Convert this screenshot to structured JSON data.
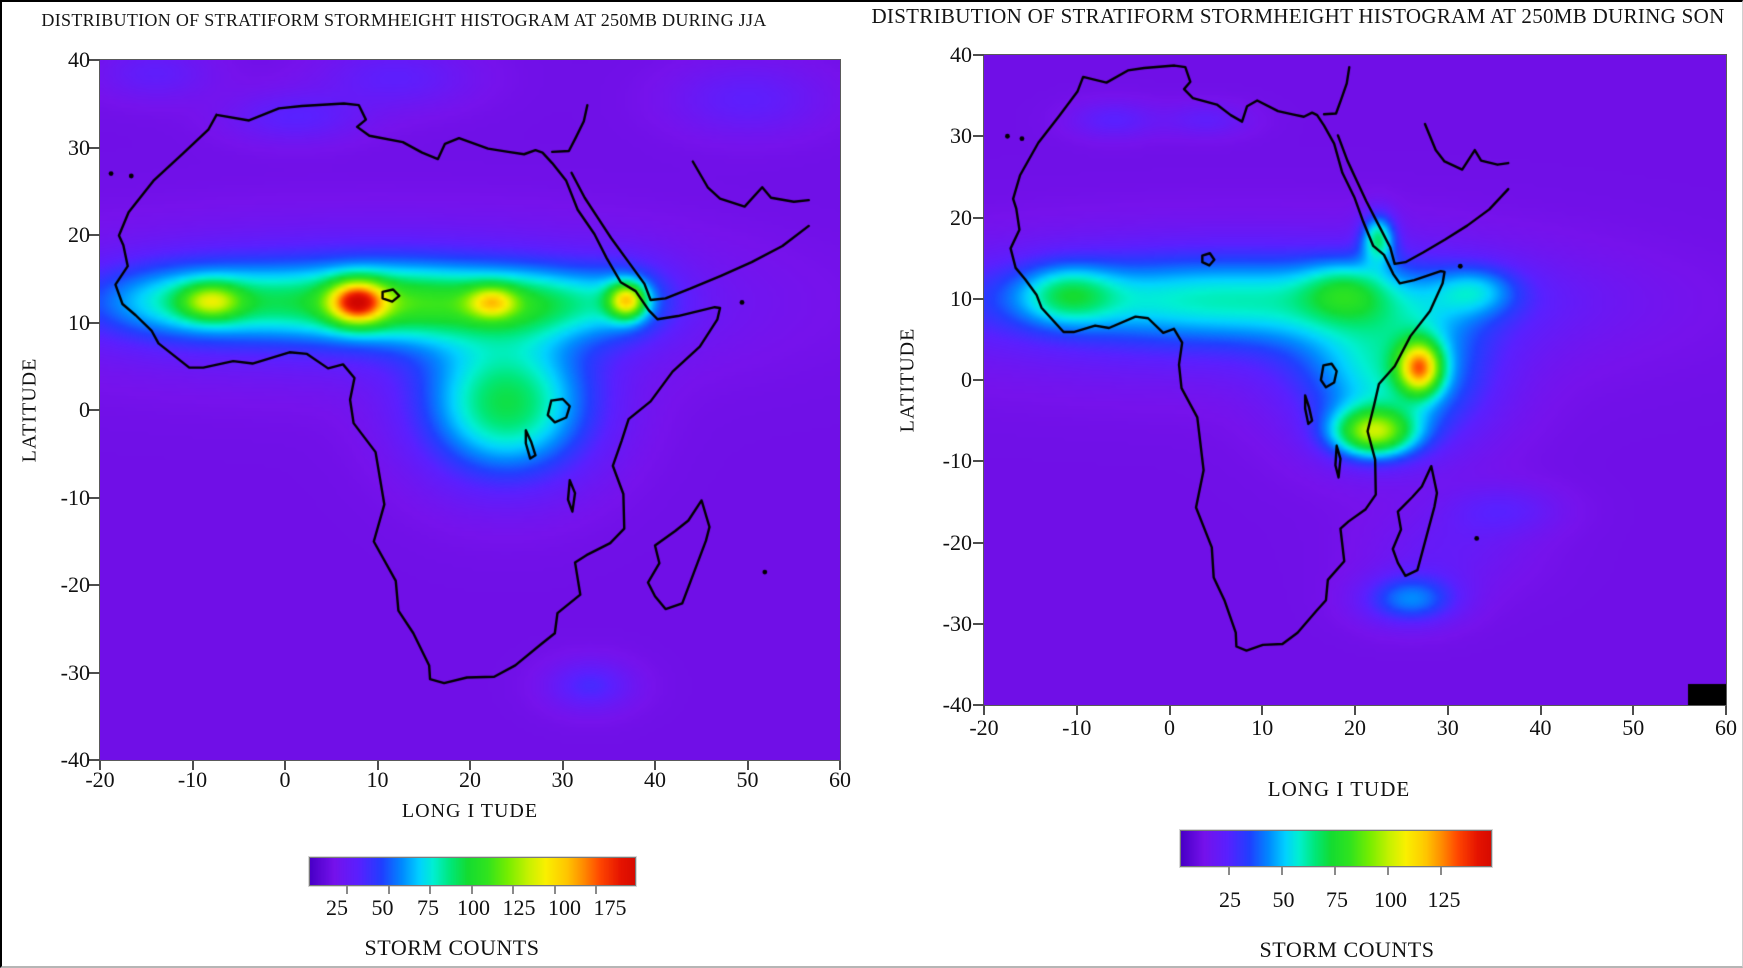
{
  "page": {
    "background": "#ffffff",
    "frame_color": "#000000"
  },
  "chart_data": [
    {
      "type": "heatmap",
      "title": "DISTRIBUTION OF STRATIFORM STORMHEIGHT HISTOGRAM AT 250MB DURING JJA",
      "xlabel": "LONG I TUDE",
      "ylabel": "LATITUDE",
      "xlim": [
        -20,
        60
      ],
      "ylim": [
        -40,
        40
      ],
      "x_ticks": [
        -20,
        -10,
        0,
        10,
        20,
        30,
        40,
        50,
        60
      ],
      "y_ticks": [
        40,
        30,
        20,
        10,
        0,
        -10,
        -20,
        -30,
        -40
      ],
      "grid": false,
      "colorbar": {
        "tick_labels": [
          "25",
          "50",
          "75",
          "100",
          "125",
          "100",
          "175"
        ],
        "label": "STORM COUNTS",
        "position": "bottom"
      },
      "missing_cell": false,
      "field_units": "storm counts",
      "field": {
        "base": 12,
        "blobs_format": "[lon, lat, sigma_lon_deg, sigma_lat_deg, amplitude_counts]",
        "blobs": [
          [
            10,
            12.3,
            30,
            7.5,
            28
          ],
          [
            -9,
            12.4,
            12,
            4.2,
            52
          ],
          [
            11,
            12.3,
            11,
            4.2,
            58
          ],
          [
            27,
            12.3,
            10,
            4.0,
            48
          ],
          [
            -8,
            12.4,
            3.2,
            2.0,
            50
          ],
          [
            7.8,
            12.3,
            3.0,
            2.4,
            95
          ],
          [
            22.4,
            12.3,
            2.6,
            1.8,
            50
          ],
          [
            37,
            12.5,
            2.0,
            2.0,
            85
          ],
          [
            37,
            12.5,
            5.0,
            4.5,
            22
          ],
          [
            24,
            0.5,
            9,
            8,
            75
          ],
          [
            33,
            -31.5,
            4.5,
            2.8,
            20
          ],
          [
            1,
            33.5,
            7,
            2.8,
            16
          ],
          [
            12,
            38,
            8,
            3.5,
            14
          ],
          [
            50,
            35.5,
            8,
            4,
            14
          ],
          [
            -14,
            38.5,
            6,
            3,
            13
          ]
        ],
        "peak_summary": "ITCZ band of ~90-110 counts along lat 12N from lon -18 to 40; maximum ~185 (red) at lon 8E lat 12N; secondary orange maxima at lon -8, 22 and 37; green lobe over Congo basin"
      }
    },
    {
      "type": "heatmap",
      "title": "DISTRIBUTION OF STRATIFORM STORMHEIGHT HISTOGRAM AT 250MB DURING SON",
      "xlabel": "LONG I TUDE",
      "ylabel": "LATITUDE",
      "xlim": [
        -20,
        60
      ],
      "ylim": [
        -40,
        40
      ],
      "x_ticks": [
        -20,
        -10,
        0,
        10,
        20,
        30,
        40,
        50,
        60
      ],
      "y_ticks": [
        40,
        30,
        20,
        10,
        0,
        -10,
        -20,
        -30,
        -40
      ],
      "grid": false,
      "colorbar": {
        "tick_labels": [
          "25",
          "50",
          "75",
          "100",
          "125"
        ],
        "label": "STORM COUNTS",
        "position": "bottom"
      },
      "missing_cell": true,
      "field_units": "storm counts",
      "field": {
        "base": 12,
        "blobs_format": "[lon, lat, sigma_lon_deg, sigma_lat_deg, amplitude_counts]",
        "blobs": [
          [
            8,
            9,
            30,
            8,
            25
          ],
          [
            5,
            10,
            26,
            5,
            38
          ],
          [
            -11,
            10.5,
            5,
            3.5,
            38
          ],
          [
            24,
            0.5,
            9.5,
            8.5,
            55
          ],
          [
            19,
            11,
            4.5,
            3.5,
            30
          ],
          [
            33,
            11,
            4.5,
            3,
            30
          ],
          [
            27,
            1.5,
            2.3,
            3.2,
            100
          ],
          [
            22,
            -6.5,
            4.5,
            3,
            90
          ],
          [
            22.5,
            17.5,
            1.8,
            3,
            60
          ],
          [
            26,
            -27,
            5,
            3,
            40
          ],
          [
            30,
            -21,
            8,
            5,
            10
          ],
          [
            36,
            -16,
            6,
            3,
            14
          ],
          [
            -6,
            32,
            4.5,
            2.2,
            16
          ],
          [
            4,
            32,
            4.5,
            2,
            13
          ]
        ],
        "peak_summary": "cyan band near lat 10N; green mass over central Africa lat -12 to 13; maximum ~170 (red) near lon 27E lat 2N; yellow secondary near lon 22E lat -7; green patch over West Africa; faint cyan lobes near lat -27; black missing-data cell at bottom-right corner"
      }
    }
  ],
  "colormap": {
    "stops": [
      [
        0,
        "#4A00C8"
      ],
      [
        14,
        "#7612EC"
      ],
      [
        28,
        "#5A20FF"
      ],
      [
        42,
        "#2040FF"
      ],
      [
        54,
        "#008CFF"
      ],
      [
        64,
        "#00D2FF"
      ],
      [
        72,
        "#00F0D2"
      ],
      [
        82,
        "#00E87A"
      ],
      [
        92,
        "#14DC32"
      ],
      [
        104,
        "#32E41E"
      ],
      [
        116,
        "#78EE00"
      ],
      [
        128,
        "#C8F200"
      ],
      [
        138,
        "#FAF000"
      ],
      [
        150,
        "#FFC800"
      ],
      [
        160,
        "#FF8C00"
      ],
      [
        170,
        "#FF4600"
      ],
      [
        182,
        "#E61400"
      ],
      [
        200,
        "#C80000"
      ]
    ],
    "range": [
      0,
      190
    ]
  },
  "map_outline": {
    "coastlines": {
      "africa": [
        [
          -5.9,
          35.8
        ],
        [
          -2.2,
          35.1
        ],
        [
          1.2,
          36.6
        ],
        [
          3.8,
          36.9
        ],
        [
          8.6,
          37.2
        ],
        [
          10.3,
          37.0
        ],
        [
          11.1,
          35.2
        ],
        [
          10.1,
          34.3
        ],
        [
          11.5,
          33.2
        ],
        [
          15.3,
          32.4
        ],
        [
          17.5,
          31.1
        ],
        [
          19.3,
          30.3
        ],
        [
          20.1,
          32.2
        ],
        [
          21.7,
          32.9
        ],
        [
          25.0,
          31.6
        ],
        [
          27.3,
          31.2
        ],
        [
          29.1,
          30.9
        ],
        [
          30.4,
          31.4
        ],
        [
          31.2,
          31.1
        ],
        [
          32.3,
          29.8
        ],
        [
          33.9,
          27.6
        ],
        [
          35.2,
          24.0
        ],
        [
          37.1,
          21.0
        ],
        [
          38.5,
          18.0
        ],
        [
          40.1,
          15.0
        ],
        [
          41.8,
          13.9
        ],
        [
          43.3,
          11.5
        ],
        [
          44.3,
          10.4
        ],
        [
          46.6,
          10.8
        ],
        [
          50.8,
          11.9
        ],
        [
          51.4,
          11.8
        ],
        [
          51.1,
          10.4
        ],
        [
          49.1,
          7.0
        ],
        [
          46.0,
          3.9
        ],
        [
          43.5,
          0.2
        ],
        [
          41.0,
          -2.0
        ],
        [
          40.2,
          -4.7
        ],
        [
          39.2,
          -7.8
        ],
        [
          40.4,
          -11.3
        ],
        [
          40.5,
          -15.6
        ],
        [
          38.9,
          -17.4
        ],
        [
          36.2,
          -18.9
        ],
        [
          34.9,
          -19.8
        ],
        [
          35.5,
          -23.8
        ],
        [
          32.9,
          -26.1
        ],
        [
          32.6,
          -28.6
        ],
        [
          31.1,
          -29.9
        ],
        [
          28.1,
          -32.6
        ],
        [
          25.7,
          -34.0
        ],
        [
          22.6,
          -34.1
        ],
        [
          20.0,
          -34.8
        ],
        [
          18.4,
          -34.3
        ],
        [
          18.3,
          -32.6
        ],
        [
          16.5,
          -28.6
        ],
        [
          14.8,
          -25.8
        ],
        [
          14.5,
          -22.1
        ],
        [
          12.0,
          -17.2
        ],
        [
          13.2,
          -12.6
        ],
        [
          12.2,
          -6.1
        ],
        [
          9.7,
          -2.5
        ],
        [
          9.3,
          0.4
        ],
        [
          9.8,
          3.1
        ],
        [
          8.5,
          4.8
        ],
        [
          6.8,
          4.3
        ],
        [
          4.4,
          6.1
        ],
        [
          2.4,
          6.3
        ],
        [
          -1.8,
          4.9
        ],
        [
          -4.0,
          5.2
        ],
        [
          -7.4,
          4.4
        ],
        [
          -9.0,
          4.4
        ],
        [
          -12.5,
          7.4
        ],
        [
          -13.3,
          9.0
        ],
        [
          -15.1,
          10.9
        ],
        [
          -16.6,
          12.3
        ],
        [
          -17.4,
          14.7
        ],
        [
          -16.0,
          17.0
        ],
        [
          -16.5,
          19.6
        ],
        [
          -17.0,
          20.8
        ],
        [
          -15.9,
          23.7
        ],
        [
          -13.0,
          27.7
        ],
        [
          -9.7,
          31.0
        ],
        [
          -6.8,
          34.0
        ],
        [
          -5.9,
          35.8
        ]
      ],
      "madagascar": [
        [
          49.3,
          -12.1
        ],
        [
          50.2,
          -15.4
        ],
        [
          49.8,
          -17.1
        ],
        [
          47.1,
          -24.9
        ],
        [
          45.2,
          -25.6
        ],
        [
          44.0,
          -24.0
        ],
        [
          43.2,
          -22.3
        ],
        [
          44.5,
          -19.9
        ],
        [
          44.0,
          -17.7
        ],
        [
          46.3,
          -15.9
        ],
        [
          47.8,
          -14.6
        ],
        [
          49.3,
          -12.1
        ]
      ],
      "arabia": [
        [
          34.5,
          28.6
        ],
        [
          36.0,
          25.5
        ],
        [
          37.5,
          23.0
        ],
        [
          39.0,
          20.5
        ],
        [
          41.0,
          17.5
        ],
        [
          42.8,
          14.8
        ],
        [
          43.5,
          12.8
        ],
        [
          45.2,
          13.0
        ],
        [
          48.0,
          14.2
        ],
        [
          51.5,
          15.8
        ],
        [
          55.0,
          17.5
        ],
        [
          58.5,
          19.5
        ],
        [
          61.5,
          22.0
        ]
      ],
      "levant": [
        [
          32.3,
          31.2
        ],
        [
          34.2,
          31.3
        ],
        [
          35.0,
          33.0
        ],
        [
          35.9,
          35.0
        ],
        [
          36.3,
          37.0
        ]
      ],
      "persian_gulf": [
        [
          48.3,
          30.0
        ],
        [
          50.0,
          26.8
        ],
        [
          51.4,
          25.4
        ],
        [
          54.2,
          24.4
        ],
        [
          56.2,
          26.8
        ],
        [
          57.2,
          25.5
        ],
        [
          59.8,
          25.0
        ],
        [
          61.5,
          25.2
        ]
      ],
      "lake_chad": [
        [
          13.0,
          13.8
        ],
        [
          14.2,
          14.1
        ],
        [
          14.9,
          13.3
        ],
        [
          14.1,
          12.6
        ],
        [
          13.0,
          13.0
        ],
        [
          13.0,
          13.8
        ]
      ],
      "lake_victoria": [
        [
          32.2,
          0.3
        ],
        [
          33.5,
          0.5
        ],
        [
          34.3,
          -0.4
        ],
        [
          33.9,
          -1.8
        ],
        [
          32.6,
          -2.4
        ],
        [
          31.8,
          -1.5
        ],
        [
          32.2,
          0.3
        ]
      ],
      "lake_tanganyika": [
        [
          29.3,
          -3.4
        ],
        [
          29.9,
          -4.8
        ],
        [
          30.4,
          -6.5
        ],
        [
          29.8,
          -6.9
        ],
        [
          29.3,
          -5.0
        ],
        [
          29.3,
          -3.4
        ]
      ],
      "lake_malawi": [
        [
          34.3,
          -9.6
        ],
        [
          34.9,
          -11.2
        ],
        [
          34.6,
          -13.5
        ],
        [
          34.1,
          -12.0
        ],
        [
          34.3,
          -9.6
        ]
      ]
    },
    "islands_dots": [
      [
        -17.9,
        28.5
      ],
      [
        -15.6,
        28.2
      ],
      [
        53.9,
        12.5
      ],
      [
        56.5,
        -21.0
      ]
    ],
    "panel_fits": [
      {
        "lon_scale": 0.95,
        "lon_offset": -1.8,
        "lat_scale": 0.92,
        "lat_offset": 0.8
      },
      {
        "lon_scale": 0.68,
        "lon_offset": -5.3,
        "lat_scale": 1.0,
        "lat_offset": 1.5
      }
    ]
  }
}
